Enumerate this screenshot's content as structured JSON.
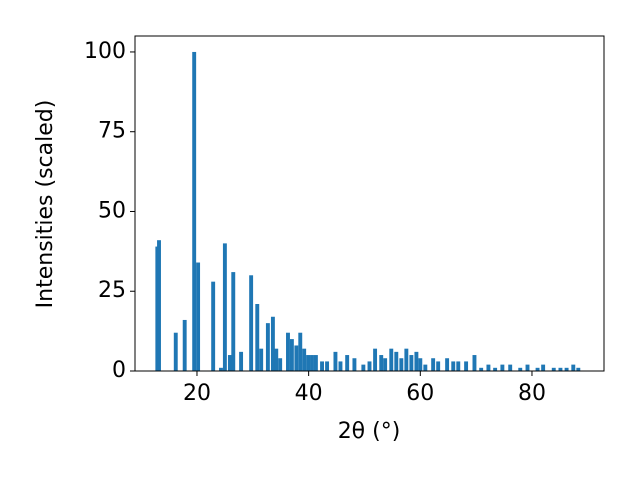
{
  "chart_data": {
    "type": "bar",
    "color": "#1f77b4",
    "x_label": "2θ (°)",
    "y_label": "Intensities (scaled)",
    "x": [
      12.9,
      13.2,
      16.2,
      17.8,
      19.5,
      20.2,
      22.9,
      24.3,
      25.0,
      25.9,
      26.5,
      27.9,
      29.7,
      30.8,
      31.5,
      32.7,
      33.6,
      34.2,
      34.9,
      36.3,
      37.0,
      37.8,
      38.5,
      39.2,
      39.9,
      40.6,
      41.3,
      42.4,
      43.3,
      44.8,
      45.7,
      46.9,
      48.2,
      49.8,
      50.9,
      51.9,
      53.0,
      53.7,
      54.8,
      55.7,
      56.6,
      57.5,
      58.4,
      59.3,
      60.0,
      60.9,
      62.3,
      63.2,
      64.8,
      65.9,
      66.8,
      68.2,
      69.7,
      70.9,
      72.2,
      73.4,
      74.7,
      76.1,
      77.9,
      79.2,
      81.0,
      82.0,
      83.9,
      85.1,
      86.2,
      87.4,
      88.3
    ],
    "values": [
      39,
      41,
      12,
      16,
      100,
      34,
      28,
      1,
      40,
      5,
      31,
      6,
      30,
      21,
      7,
      15,
      17,
      7,
      4,
      12,
      10,
      8,
      12,
      7,
      5,
      5,
      5,
      3,
      3,
      6,
      3,
      5,
      4,
      2,
      3,
      7,
      5,
      4,
      7,
      6,
      4,
      7,
      5,
      6,
      4,
      2,
      4,
      3,
      4,
      3,
      3,
      3,
      5,
      1,
      2,
      1,
      2,
      2,
      1,
      2,
      1,
      2,
      1,
      1,
      1,
      2,
      1
    ],
    "xlim": [
      8.9,
      92.9
    ],
    "ylim": [
      0,
      105
    ],
    "xticks": [
      20,
      40,
      60,
      80
    ],
    "yticks": [
      0,
      25,
      50,
      75,
      100
    ]
  }
}
